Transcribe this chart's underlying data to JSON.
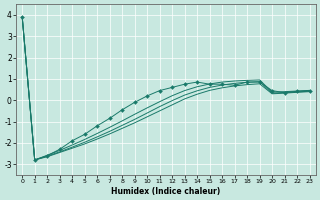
{
  "xlabel": "Humidex (Indice chaleur)",
  "xlim": [
    -0.5,
    23.5
  ],
  "ylim": [
    -3.5,
    4.5
  ],
  "yticks": [
    -3,
    -2,
    -1,
    0,
    1,
    2,
    3,
    4
  ],
  "xticks": [
    0,
    1,
    2,
    3,
    4,
    5,
    6,
    7,
    8,
    9,
    10,
    11,
    12,
    13,
    14,
    15,
    16,
    17,
    18,
    19,
    20,
    21,
    22,
    23
  ],
  "bg_color": "#c8e8e0",
  "line_color": "#1a7a6a",
  "grid_color": "#ffffff",
  "marker_line_x": [
    0,
    1,
    2,
    3,
    4,
    5,
    6,
    7,
    8,
    9,
    10,
    11,
    12,
    13,
    14,
    15,
    16,
    17,
    18,
    19,
    20,
    21,
    22,
    23
  ],
  "marker_line_y": [
    3.9,
    -2.8,
    -2.6,
    -2.3,
    -1.9,
    -1.6,
    -1.2,
    -0.85,
    -0.45,
    -0.1,
    0.2,
    0.45,
    0.6,
    0.75,
    0.85,
    0.75,
    0.75,
    0.7,
    0.85,
    0.85,
    0.45,
    0.35,
    0.42,
    0.45
  ],
  "smooth1_x": [
    0,
    1,
    2,
    3,
    4,
    5,
    6,
    7,
    8,
    9,
    10,
    11,
    12,
    13,
    14,
    15,
    16,
    17,
    18,
    19,
    20,
    21,
    22,
    23
  ],
  "smooth1_y": [
    3.9,
    -2.8,
    -2.65,
    -2.45,
    -2.25,
    -2.05,
    -1.82,
    -1.58,
    -1.32,
    -1.06,
    -0.78,
    -0.5,
    -0.22,
    0.06,
    0.28,
    0.46,
    0.58,
    0.67,
    0.73,
    0.77,
    0.3,
    0.33,
    0.37,
    0.4
  ],
  "smooth2_x": [
    0,
    1,
    2,
    3,
    4,
    5,
    6,
    7,
    8,
    9,
    10,
    11,
    12,
    13,
    14,
    15,
    16,
    17,
    18,
    19,
    20,
    21,
    22,
    23
  ],
  "smooth2_y": [
    3.9,
    -2.8,
    -2.62,
    -2.42,
    -2.2,
    -1.97,
    -1.72,
    -1.46,
    -1.18,
    -0.9,
    -0.6,
    -0.3,
    -0.02,
    0.24,
    0.44,
    0.6,
    0.71,
    0.79,
    0.84,
    0.87,
    0.33,
    0.36,
    0.39,
    0.42
  ],
  "smooth3_x": [
    0,
    1,
    2,
    3,
    4,
    5,
    6,
    7,
    8,
    9,
    10,
    11,
    12,
    13,
    14,
    15,
    16,
    17,
    18,
    19,
    20,
    21,
    22,
    23
  ],
  "smooth3_y": [
    3.9,
    -2.8,
    -2.58,
    -2.35,
    -2.1,
    -1.84,
    -1.56,
    -1.27,
    -0.97,
    -0.66,
    -0.36,
    -0.07,
    0.21,
    0.45,
    0.63,
    0.76,
    0.85,
    0.9,
    0.93,
    0.95,
    0.38,
    0.4,
    0.43,
    0.46
  ]
}
